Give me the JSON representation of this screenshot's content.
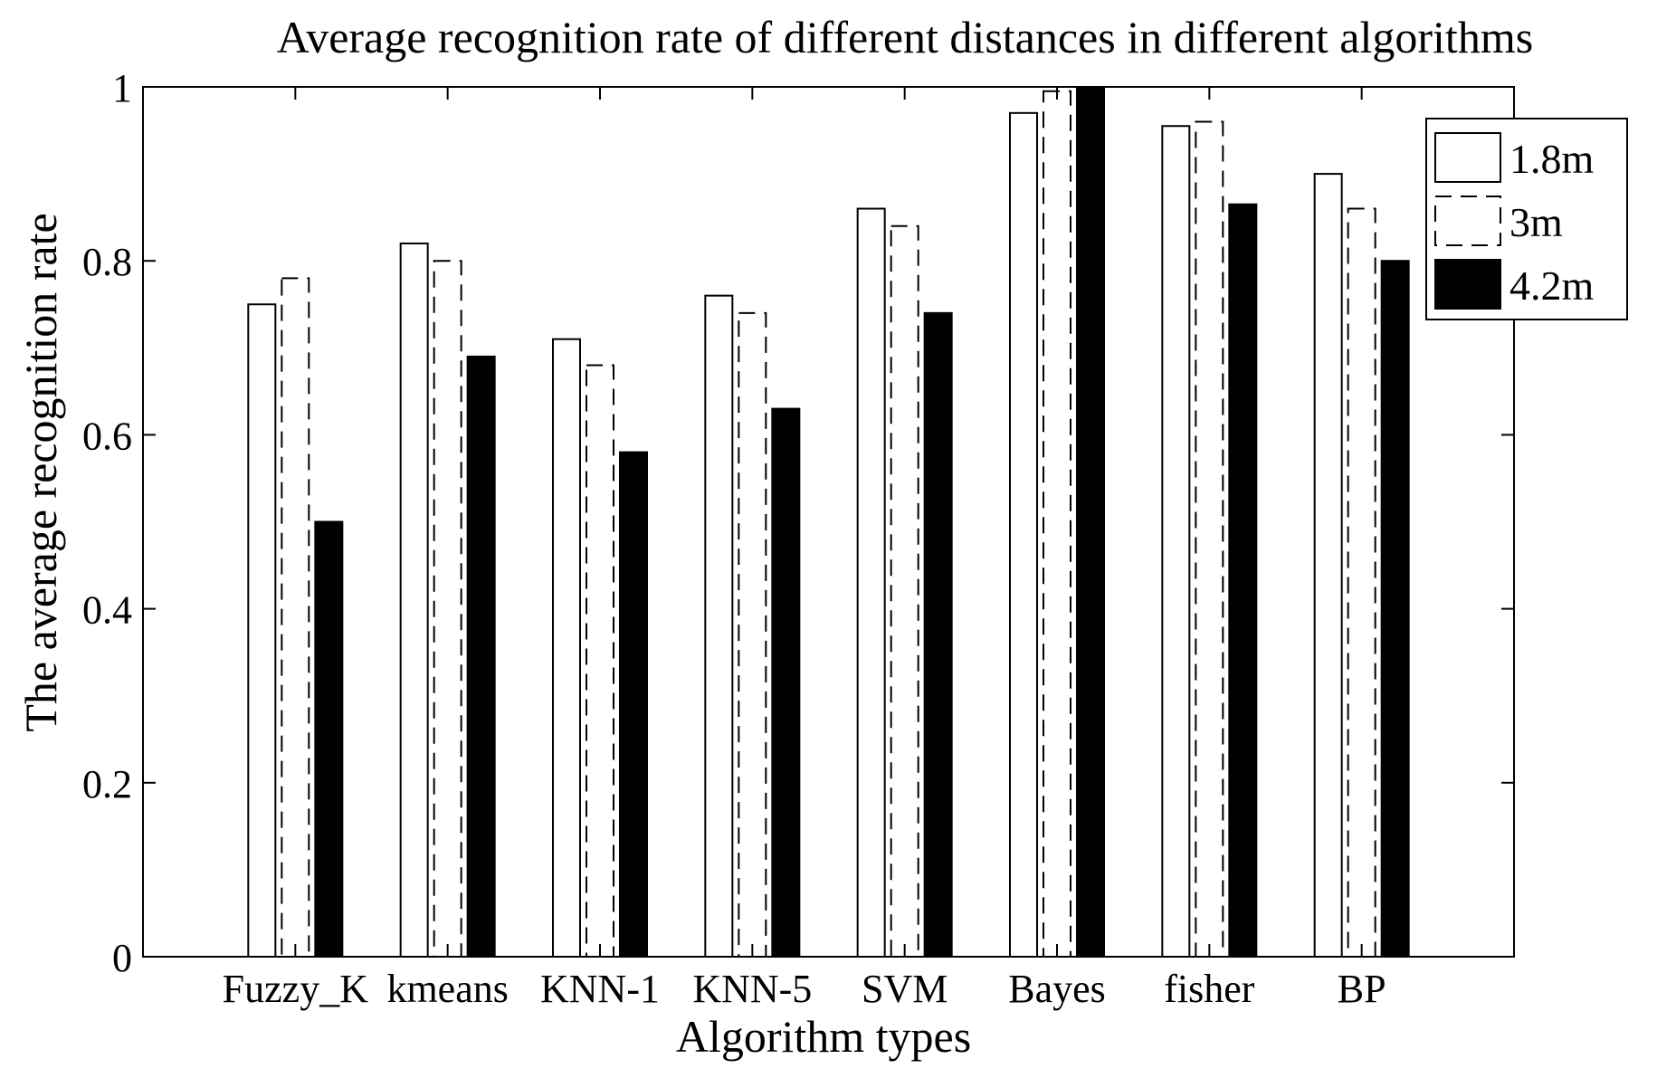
{
  "chart_data": {
    "type": "bar",
    "title": "Average recognition rate of different distances in different algorithms",
    "xlabel": "Algorithm types",
    "ylabel": "The average recognition rate",
    "ylim": [
      0,
      1
    ],
    "yticks": [
      "0",
      "0.2",
      "0.4",
      "0.6",
      "0.8",
      "1"
    ],
    "ytick_values": [
      0,
      0.2,
      0.4,
      0.6,
      0.8,
      1.0
    ],
    "categories": [
      "Fuzzy_K",
      "kmeans",
      "KNN-1",
      "KNN-5",
      "SVM",
      "Bayes",
      "fisher",
      "BP"
    ],
    "series": [
      {
        "name": "1.8m",
        "style": "solid-outline",
        "values": [
          0.75,
          0.82,
          0.71,
          0.76,
          0.86,
          0.97,
          0.955,
          0.9
        ]
      },
      {
        "name": "3m",
        "style": "dashed-outline",
        "values": [
          0.78,
          0.8,
          0.68,
          0.74,
          0.84,
          0.995,
          0.96,
          0.86
        ]
      },
      {
        "name": "4.2m",
        "style": "filled-black",
        "values": [
          0.5,
          0.69,
          0.58,
          0.63,
          0.74,
          1.0,
          0.865,
          0.8
        ]
      }
    ],
    "grid": false,
    "legend_position": "top-right",
    "colors": {
      "outline": "#000000",
      "fill": "#000000",
      "background": "#ffffff"
    }
  }
}
